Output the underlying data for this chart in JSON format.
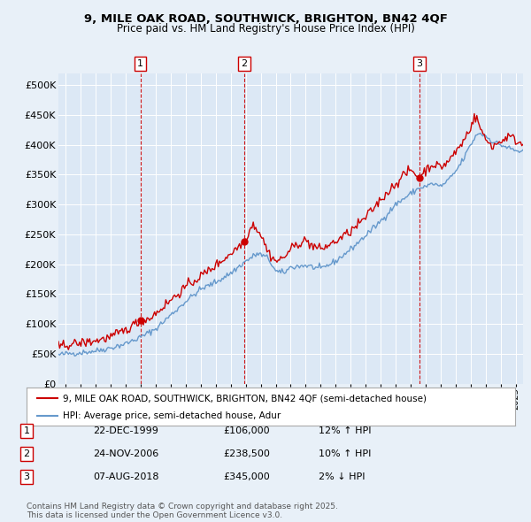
{
  "title": "9, MILE OAK ROAD, SOUTHWICK, BRIGHTON, BN42 4QF",
  "subtitle": "Price paid vs. HM Land Registry's House Price Index (HPI)",
  "legend_line1": "9, MILE OAK ROAD, SOUTHWICK, BRIGHTON, BN42 4QF (semi-detached house)",
  "legend_line2": "HPI: Average price, semi-detached house, Adur",
  "footer": "Contains HM Land Registry data © Crown copyright and database right 2025.\nThis data is licensed under the Open Government Licence v3.0.",
  "transactions": [
    {
      "label": "1",
      "date": "22-DEC-1999",
      "price": "£106,000",
      "hpi": "12% ↑ HPI",
      "year": 1999.97,
      "value": 106000
    },
    {
      "label": "2",
      "date": "24-NOV-2006",
      "price": "£238,500",
      "hpi": "10% ↑ HPI",
      "year": 2006.9,
      "value": 238500
    },
    {
      "label": "3",
      "date": "07-AUG-2018",
      "price": "£345,000",
      "hpi": "2% ↓ HPI",
      "year": 2018.6,
      "value": 345000
    }
  ],
  "price_paid_color": "#cc0000",
  "hpi_color": "#6699cc",
  "background_color": "#e8f0f8",
  "plot_bg_color": "#dce8f5",
  "ylim": [
    0,
    520000
  ],
  "yticks": [
    0,
    50000,
    100000,
    150000,
    200000,
    250000,
    300000,
    350000,
    400000,
    450000,
    500000
  ],
  "xmin": 1994.5,
  "xmax": 2025.5
}
